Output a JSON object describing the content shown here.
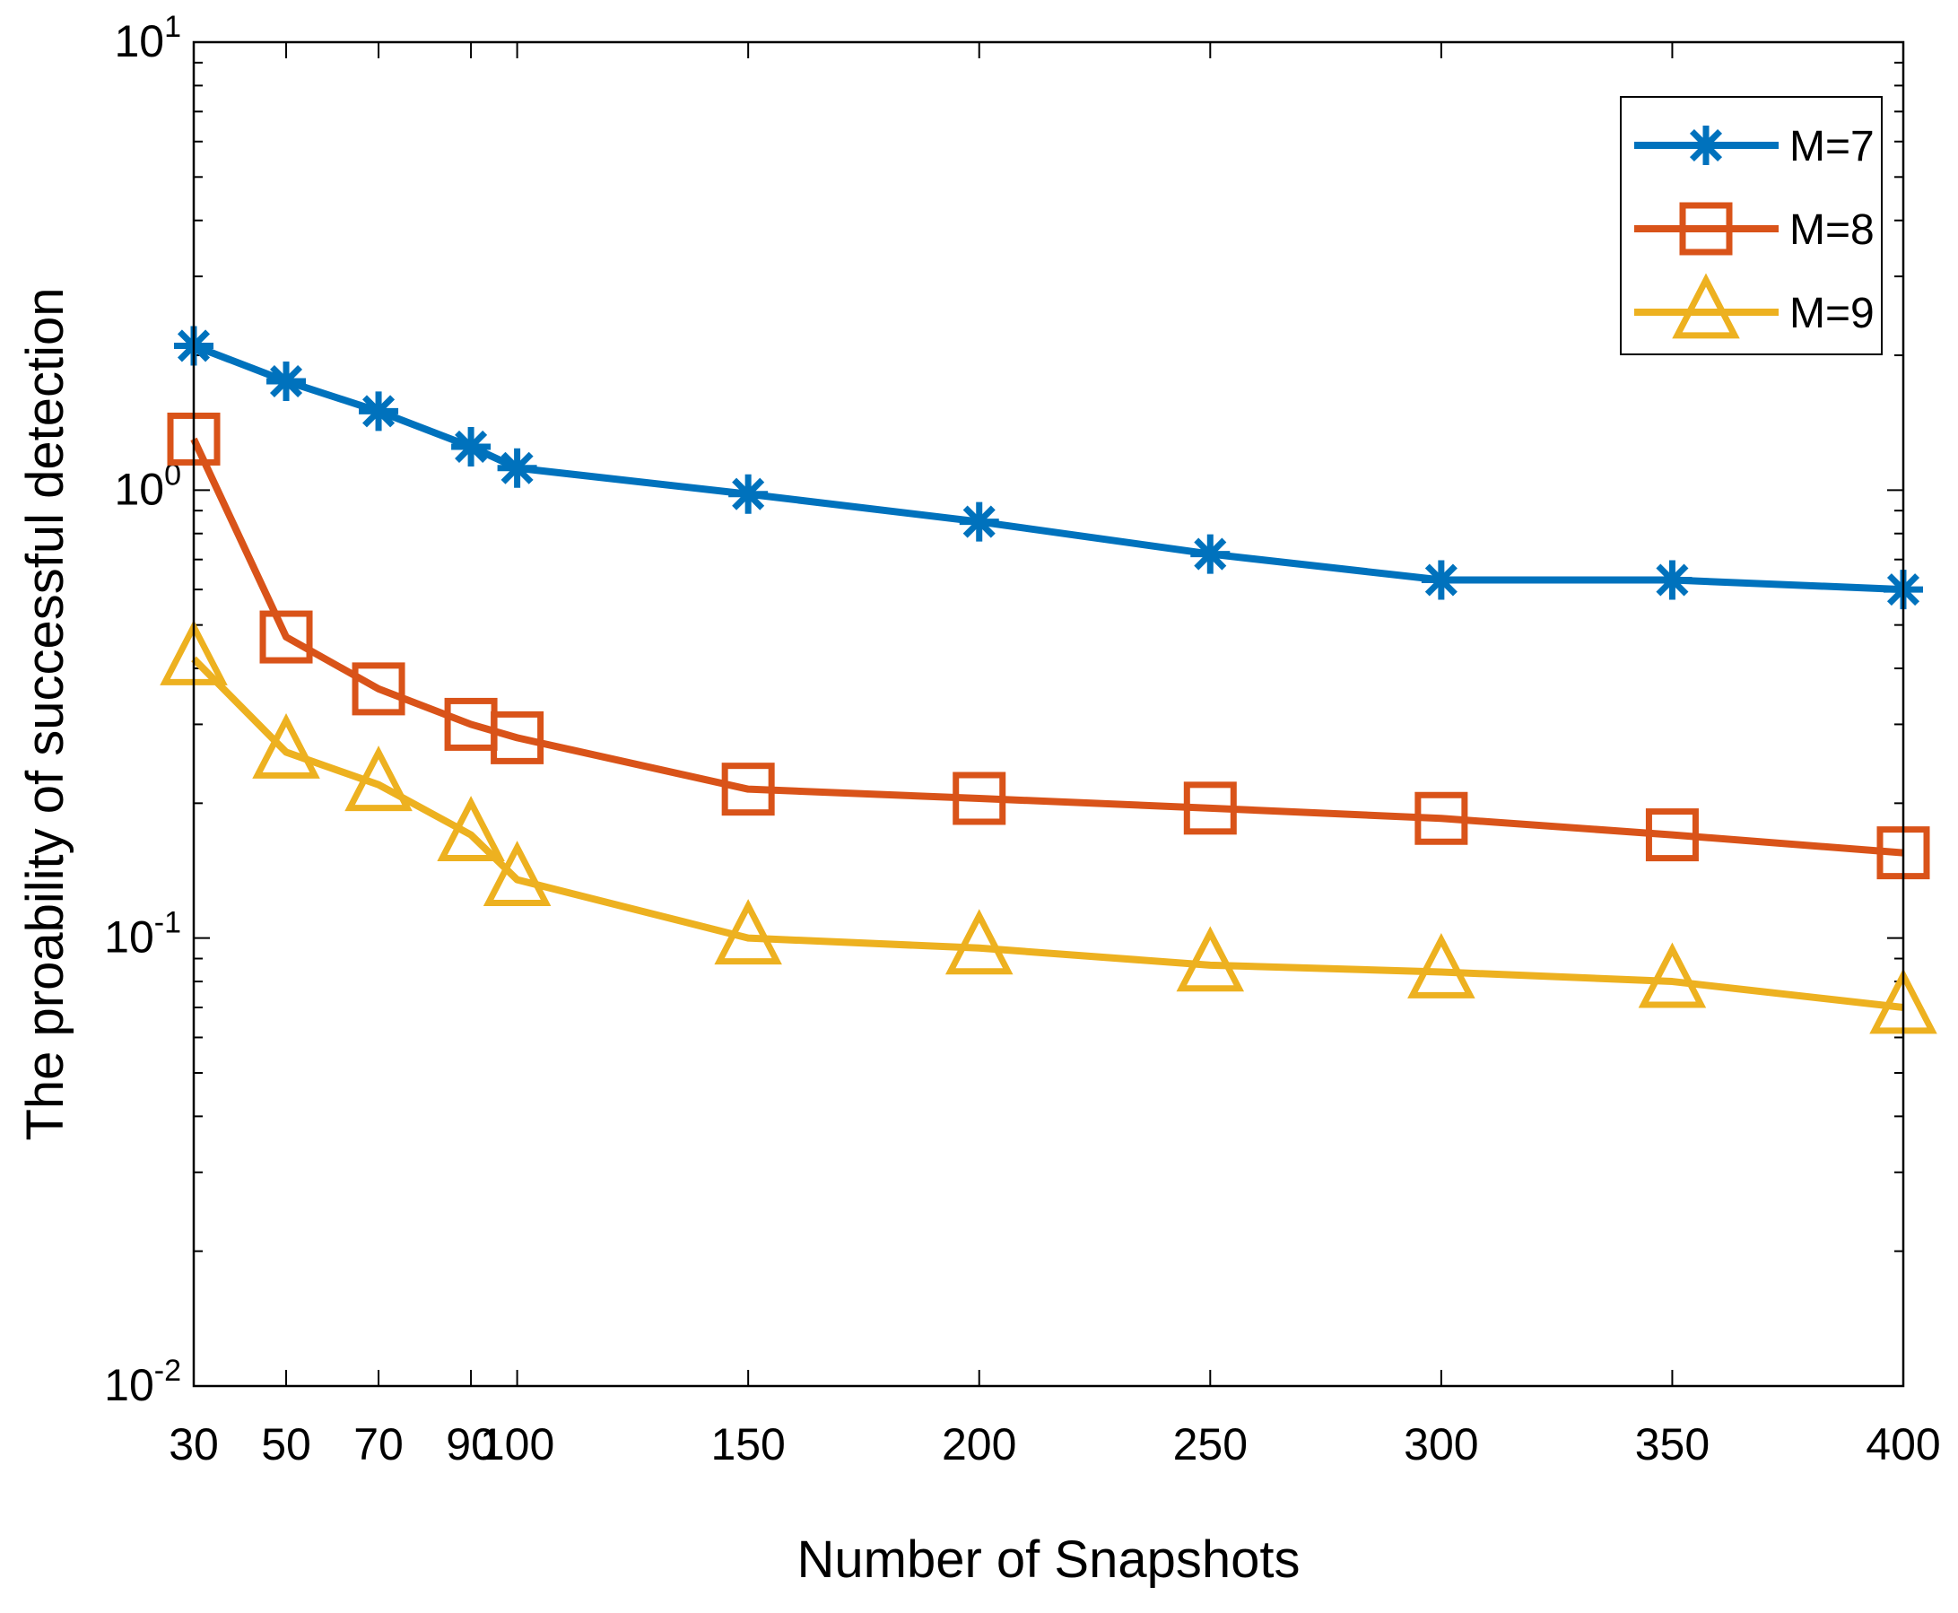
{
  "chart_data": {
    "type": "line",
    "title": "",
    "xlabel": "Number of Snapshots",
    "ylabel": "The proability of successful detection",
    "yscale": "log",
    "xlim": [
      30,
      400
    ],
    "ylim": [
      0.01,
      10
    ],
    "grid": false,
    "legend_position": "top-right",
    "x": [
      30,
      50,
      70,
      90,
      100,
      150,
      200,
      250,
      300,
      350,
      400
    ],
    "x_tick_labels": [
      "30",
      "50",
      "70",
      "90",
      "100",
      "150",
      "200",
      "250",
      "300",
      "350",
      "400"
    ],
    "y_ticks": [
      {
        "base": "10",
        "exp": "-2",
        "value": 0.01
      },
      {
        "base": "10",
        "exp": "-1",
        "value": 0.1
      },
      {
        "base": "10",
        "exp": "0",
        "value": 1
      },
      {
        "base": "10",
        "exp": "1",
        "value": 10
      }
    ],
    "series": [
      {
        "name": "M=7",
        "color": "#0072BD",
        "marker": "asterisk",
        "values": [
          2.1,
          1.75,
          1.5,
          1.25,
          1.12,
          0.98,
          0.85,
          0.72,
          0.63,
          0.63,
          0.6
        ]
      },
      {
        "name": "M=8",
        "color": "#D95319",
        "marker": "square",
        "values": [
          1.3,
          0.47,
          0.36,
          0.3,
          0.28,
          0.215,
          0.205,
          0.195,
          0.185,
          0.17,
          0.155
        ]
      },
      {
        "name": "M=9",
        "color": "#EDB120",
        "marker": "triangle",
        "values": [
          0.42,
          0.26,
          0.22,
          0.17,
          0.135,
          0.1,
          0.095,
          0.087,
          0.084,
          0.08,
          0.07
        ]
      }
    ]
  }
}
